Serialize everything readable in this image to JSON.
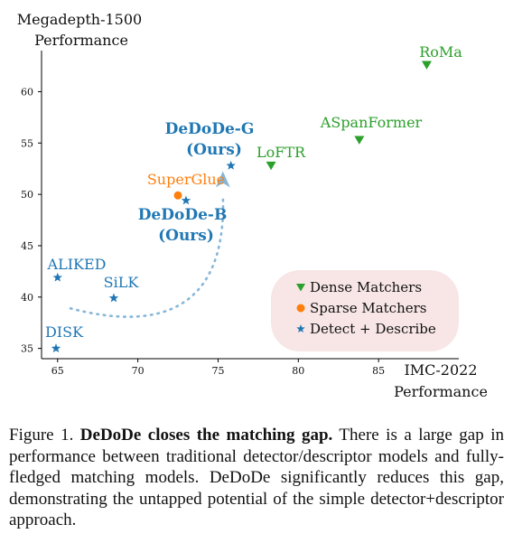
{
  "chart_data": {
    "type": "scatter",
    "ylabel_line1": "Megadepth-1500",
    "ylabel_line2": "Performance",
    "xlabel_line1": "IMC-2022",
    "xlabel_line2": "Performance",
    "xlim": [
      64,
      90
    ],
    "ylim": [
      34,
      64
    ],
    "xticks": [
      65,
      70,
      75,
      80,
      85
    ],
    "yticks": [
      35,
      40,
      45,
      50,
      55,
      60
    ],
    "series": [
      {
        "name": "Dense Matchers",
        "marker": "triangle",
        "color": "#2ca02c",
        "points": [
          {
            "label": "RoMa",
            "x": 88.0,
            "y": 62.6
          },
          {
            "label": "ASpanFormer",
            "x": 83.8,
            "y": 55.3
          },
          {
            "label": "LoFTR",
            "x": 78.3,
            "y": 52.8
          }
        ]
      },
      {
        "name": "Sparse Matchers",
        "marker": "circle",
        "color": "#ff7f0e",
        "points": [
          {
            "label": "SuperGlue",
            "x": 72.5,
            "y": 49.9
          }
        ]
      },
      {
        "name": "Detect + Describe",
        "marker": "star",
        "color": "#1f77b4",
        "points": [
          {
            "label": "DeDoDe-G",
            "x": 75.8,
            "y": 52.8
          },
          {
            "label": "DeDoDe-B",
            "x": 73.0,
            "y": 49.4
          },
          {
            "label": "ALIKED",
            "x": 65.0,
            "y": 41.9
          },
          {
            "label": "SiLK",
            "x": 68.5,
            "y": 39.9
          },
          {
            "label": "DISK",
            "x": 64.9,
            "y": 35.0
          }
        ]
      }
    ],
    "labels": {
      "roma": "RoMa",
      "aspan": "ASpanFormer",
      "loftr": "LoFTR",
      "superglue": "SuperGlue",
      "dedodeg_1": "DeDoDe-G",
      "dedodeg_2": "(Ours)",
      "dedodeb_1": "DeDoDe-B",
      "dedodeb_2": "(Ours)",
      "aliked": "ALIKED",
      "silk": "SiLK",
      "disk": "DISK"
    },
    "legend": {
      "placement": "lower-right",
      "background": "#f8e6e6",
      "items": [
        {
          "label": "Dense Matchers",
          "marker": "triangle",
          "color": "#2ca02c"
        },
        {
          "label": "Sparse Matchers",
          "marker": "circle",
          "color": "#ff7f0e"
        },
        {
          "label": "Detect + Describe",
          "marker": "star",
          "color": "#1f77b4"
        }
      ]
    },
    "arrow": {
      "style": "dotted",
      "color": "#86b6d8",
      "from": [
        65.8,
        38.9
      ],
      "to": [
        75.3,
        51.2
      ]
    },
    "grid": false
  },
  "caption": {
    "prefix": "Figure 1.",
    "bold": "DeDoDe closes the matching gap.",
    "text": "There is a large gap in performance between traditional detector/descriptor models and fully-fledged matching models. DeDoDe significantly reduces this gap, demonstrating the untapped potential of the simple detector+descriptor approach."
  }
}
